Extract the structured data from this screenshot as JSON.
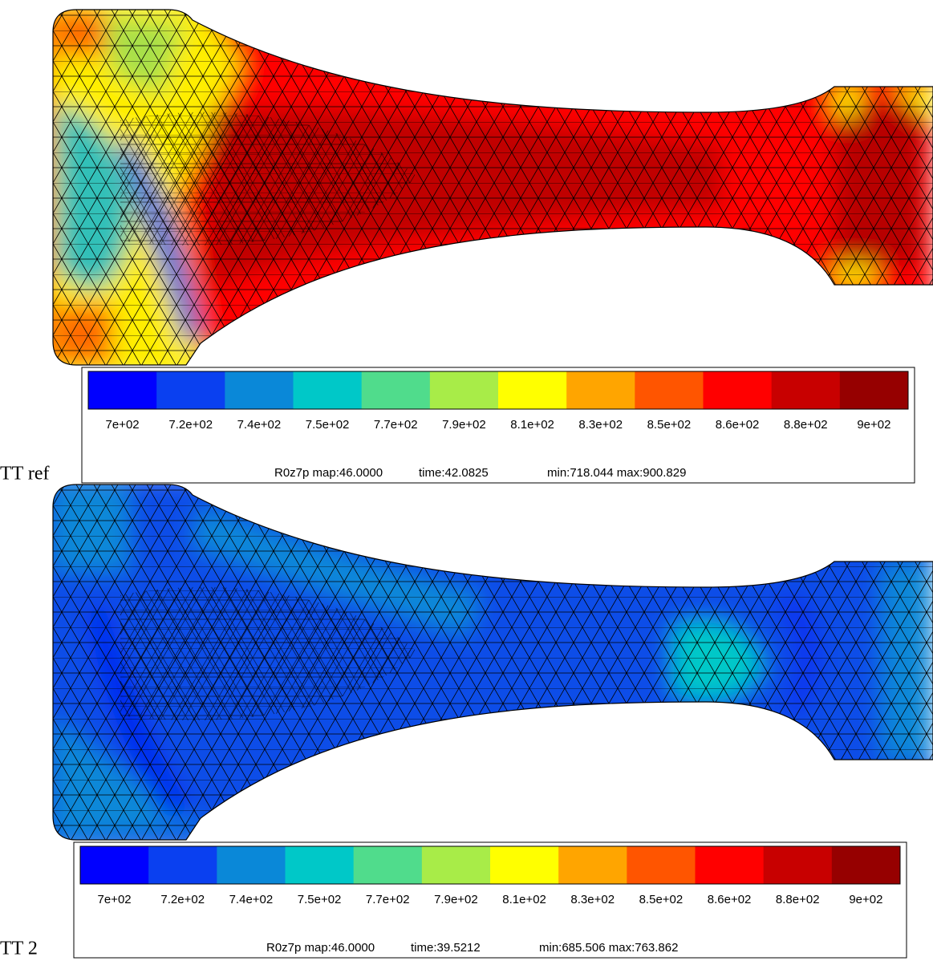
{
  "colorbar_colors": [
    "#0000ff",
    "#0a40f0",
    "#0a88d8",
    "#00c8c8",
    "#50dc8c",
    "#a8ec48",
    "#ffff00",
    "#ffa500",
    "#ff5500",
    "#ff0000",
    "#c80000",
    "#960000"
  ],
  "panels": [
    {
      "label": "TT ref",
      "colorbar_labels": [
        "7e+02",
        "7.2e+02",
        "7.4e+02",
        "7.5e+02",
        "7.7e+02",
        "7.9e+02",
        "8.1e+02",
        "8.3e+02",
        "8.5e+02",
        "8.6e+02",
        "8.8e+02",
        "9e+02"
      ],
      "info": [
        "R0z7p map:46.0000",
        "time:42.0825",
        "min:718.044 max:900.829"
      ]
    },
    {
      "label": "TT 2",
      "colorbar_labels": [
        "7e+02",
        "7.2e+02",
        "7.4e+02",
        "7.5e+02",
        "7.7e+02",
        "7.9e+02",
        "8.1e+02",
        "8.3e+02",
        "8.5e+02",
        "8.6e+02",
        "8.8e+02",
        "9e+02"
      ],
      "info": [
        "R0z7p map:46.0000",
        "time:39.5212",
        "min:685.506 max:763.862"
      ]
    }
  ]
}
